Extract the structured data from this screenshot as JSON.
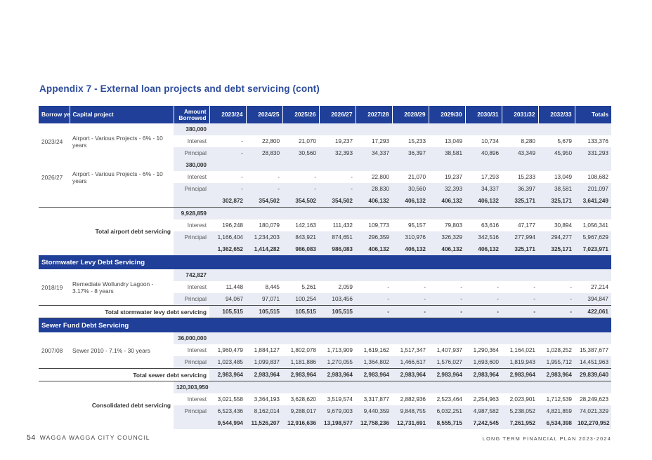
{
  "title": "Appendix 7 - External loan projects and debt servicing (cont)",
  "headers": {
    "borrow_year": "Borrow year",
    "capital_project": "Capital project",
    "amount_borrowed": "Amount Borrowed",
    "years": [
      "2023/24",
      "2024/25",
      "2025/26",
      "2026/27",
      "2027/28",
      "2028/29",
      "2029/30",
      "2030/31",
      "2031/32",
      "2032/33",
      "Totals"
    ]
  },
  "labels": {
    "interest": "Interest",
    "principal": "Principal"
  },
  "airport": {
    "loan1": {
      "year": "2023/24",
      "project": "Airport - Various Projects - 6% - 10 years",
      "amount": "380,000",
      "interest": [
        "-",
        "22,800",
        "21,070",
        "19,237",
        "17,293",
        "15,233",
        "13,049",
        "10,734",
        "8,280",
        "5,679",
        "133,376"
      ],
      "principal": [
        "-",
        "28,830",
        "30,560",
        "32,393",
        "34,337",
        "36,397",
        "38,581",
        "40,896",
        "43,349",
        "45,950",
        "331,293"
      ]
    },
    "loan2": {
      "year": "2026/27",
      "project": "Airport - Various Projects - 6% - 10 years",
      "amount": "380,000",
      "interest": [
        "-",
        "-",
        "-",
        "-",
        "22,800",
        "21,070",
        "19,237",
        "17,293",
        "15,233",
        "13,049",
        "108,682"
      ],
      "principal": [
        "-",
        "-",
        "-",
        "-",
        "28,830",
        "30,560",
        "32,393",
        "34,337",
        "36,397",
        "38,581",
        "201,097"
      ],
      "subtotal": [
        "302,872",
        "354,502",
        "354,502",
        "354,502",
        "406,132",
        "406,132",
        "406,132",
        "406,132",
        "325,171",
        "325,171",
        "3,641,249"
      ]
    },
    "total_label": "Total airport debt servicing",
    "total_amount": "9,928,859",
    "total_interest": [
      "196,248",
      "180,079",
      "142,163",
      "111,432",
      "109,773",
      "95,157",
      "79,803",
      "63,616",
      "47,177",
      "30,894",
      "1,056,341"
    ],
    "total_principal": [
      "1,166,404",
      "1,234,203",
      "843,921",
      "874,651",
      "296,359",
      "310,976",
      "326,329",
      "342,516",
      "277,994",
      "294,277",
      "5,967,629"
    ],
    "total": [
      "1,362,652",
      "1,414,282",
      "986,083",
      "986,083",
      "406,132",
      "406,132",
      "406,132",
      "406,132",
      "325,171",
      "325,171",
      "7,023,971"
    ]
  },
  "stormwater": {
    "section": "Stormwater Levy Debt Servicing",
    "year": "2018/19",
    "project": "Remediate Wollundry Lagoon - 3.17% - 8 years",
    "amount": "742,827",
    "interest": [
      "11,448",
      "8,445",
      "5,261",
      "2,059",
      "-",
      "-",
      "-",
      "-",
      "-",
      "-",
      "27,214"
    ],
    "principal": [
      "94,067",
      "97,071",
      "100,254",
      "103,456",
      "-",
      "-",
      "-",
      "-",
      "-",
      "-",
      "394,847"
    ],
    "total_label": "Total stormwater levy debt servicing",
    "total": [
      "105,515",
      "105,515",
      "105,515",
      "105,515",
      "-",
      "-",
      "-",
      "-",
      "-",
      "-",
      "422,061"
    ]
  },
  "sewer": {
    "section": "Sewer Fund Debt Servicing",
    "year": "2007/08",
    "project": "Sewer 2010 - 7.1% - 30 years",
    "amount": "36,000,000",
    "interest": [
      "1,960,479",
      "1,884,127",
      "1,802,078",
      "1,713,909",
      "1,619,162",
      "1,517,347",
      "1,407,937",
      "1,290,364",
      "1,164,021",
      "1,028,252",
      "15,387,677"
    ],
    "principal": [
      "1,023,485",
      "1,099,837",
      "1,181,886",
      "1,270,055",
      "1,364,802",
      "1,466,617",
      "1,576,027",
      "1,693,600",
      "1,819,943",
      "1,955,712",
      "14,451,963"
    ],
    "total_label": "Total sewer debt servicing",
    "total": [
      "2,983,964",
      "2,983,964",
      "2,983,964",
      "2,983,964",
      "2,983,964",
      "2,983,964",
      "2,983,964",
      "2,983,964",
      "2,983,964",
      "2,983,964",
      "29,839,640"
    ]
  },
  "consolidated": {
    "label": "Consolidated debt servicing",
    "amount": "120,303,950",
    "interest": [
      "3,021,558",
      "3,364,193",
      "3,628,620",
      "3,519,574",
      "3,317,877",
      "2,882,936",
      "2,523,464",
      "2,254,963",
      "2,023,901",
      "1,712,539",
      "28,249,623"
    ],
    "principal": [
      "6,523,436",
      "8,162,014",
      "9,288,017",
      "9,679,003",
      "9,440,359",
      "9,848,755",
      "6,032,251",
      "4,987,582",
      "5,238,052",
      "4,821,859",
      "74,021,329"
    ],
    "total": [
      "9,544,994",
      "11,526,207",
      "12,916,636",
      "13,198,577",
      "12,758,236",
      "12,731,691",
      "8,555,715",
      "7,242,545",
      "7,261,952",
      "6,534,398",
      "102,270,952"
    ]
  },
  "footer": {
    "page": "54",
    "org": "WAGGA WAGGA CITY COUNCIL",
    "doc": "LONG TERM FINANCIAL PLAN 2023-2024"
  }
}
